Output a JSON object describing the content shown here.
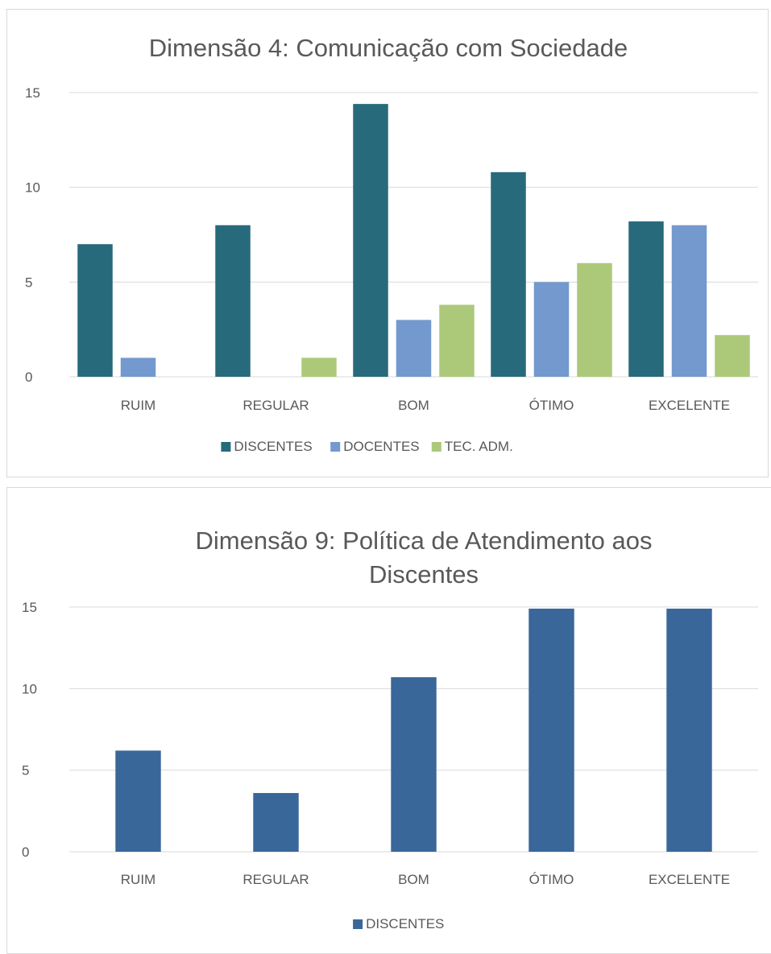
{
  "chart_data": [
    {
      "type": "bar",
      "title": "Dimensão 4: Comunicação com  Sociedade",
      "categories": [
        "RUIM",
        "REGULAR",
        "BOM",
        "ÓTIMO",
        "EXCELENTE"
      ],
      "series": [
        {
          "name": "DISCENTES",
          "color": "#276A7C",
          "values": [
            7,
            8,
            14.4,
            10.8,
            8.2
          ]
        },
        {
          "name": "DOCENTES",
          "color": "#7399CE",
          "values": [
            1,
            0,
            3,
            5,
            8
          ]
        },
        {
          "name": "TEC. ADM.",
          "color": "#ACC97A",
          "values": [
            0,
            1,
            3.8,
            6,
            2.2
          ]
        }
      ],
      "yticks": [
        "0",
        "5",
        "10",
        "15"
      ],
      "ylim": [
        0,
        15
      ],
      "grid": true,
      "legend": "bottom"
    },
    {
      "type": "bar",
      "title": "Dimensão 9: Política de Atendimento aos Discentes",
      "title_lines": [
        "Dimensão 9: Política de Atendimento aos",
        "Discentes"
      ],
      "categories": [
        "RUIM",
        "REGULAR",
        "BOM",
        "ÓTIMO",
        "EXCELENTE"
      ],
      "series": [
        {
          "name": "DISCENTES",
          "color": "#3A679A",
          "values": [
            6.2,
            3.6,
            10.7,
            14.9,
            14.9
          ]
        }
      ],
      "yticks": [
        "0",
        "5",
        "10",
        "15"
      ],
      "ylim": [
        0,
        15
      ],
      "grid": true,
      "legend": "bottom"
    }
  ]
}
